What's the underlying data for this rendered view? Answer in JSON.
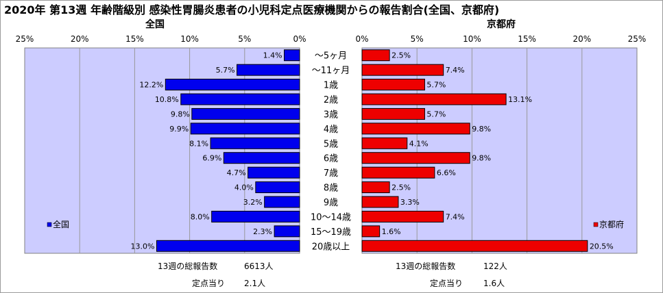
{
  "title": "2020年 第13週 年齢階級別 感染性胃腸炎患者の小児科定点医療機関からの報告割合(全国、京都府)",
  "colors": {
    "nation": "#0000ee",
    "kyoto": "#ee0000",
    "plot_bg": "#ccccff",
    "grid": "#999999"
  },
  "chart_data": {
    "type": "bar",
    "orientation": "horizontal-back-to-back",
    "categories": [
      "～5ヶ月",
      "～11ヶ月",
      "1歳",
      "2歳",
      "3歳",
      "4歳",
      "5歳",
      "6歳",
      "7歳",
      "8歳",
      "9歳",
      "10～14歳",
      "15～19歳",
      "20歳以上"
    ],
    "series": [
      {
        "name": "全国",
        "values": [
          1.4,
          5.7,
          12.2,
          10.8,
          9.8,
          9.9,
          8.1,
          6.9,
          4.7,
          4.0,
          3.2,
          8.0,
          2.3,
          13.0
        ]
      },
      {
        "name": "京都府",
        "values": [
          2.5,
          7.4,
          5.7,
          13.1,
          5.7,
          9.8,
          4.1,
          9.8,
          6.6,
          2.5,
          3.3,
          7.4,
          1.6,
          20.5
        ]
      }
    ],
    "panels": [
      "全国",
      "京都府"
    ],
    "xlim": [
      0,
      25
    ],
    "ticks": [
      "0%",
      "5%",
      "10%",
      "15%",
      "20%",
      "25%"
    ],
    "value_suffix": "%",
    "grid": true,
    "legend": [
      "bottom-left",
      "bottom-right"
    ]
  },
  "summary": {
    "nation": {
      "total_label": "13週の総報告数",
      "total_value": "6613人",
      "per_label": "定点当り",
      "per_value": "2.1人"
    },
    "kyoto": {
      "total_label": "13週の総報告数",
      "total_value": "122人",
      "per_label": "定点当り",
      "per_value": "1.6人"
    }
  }
}
